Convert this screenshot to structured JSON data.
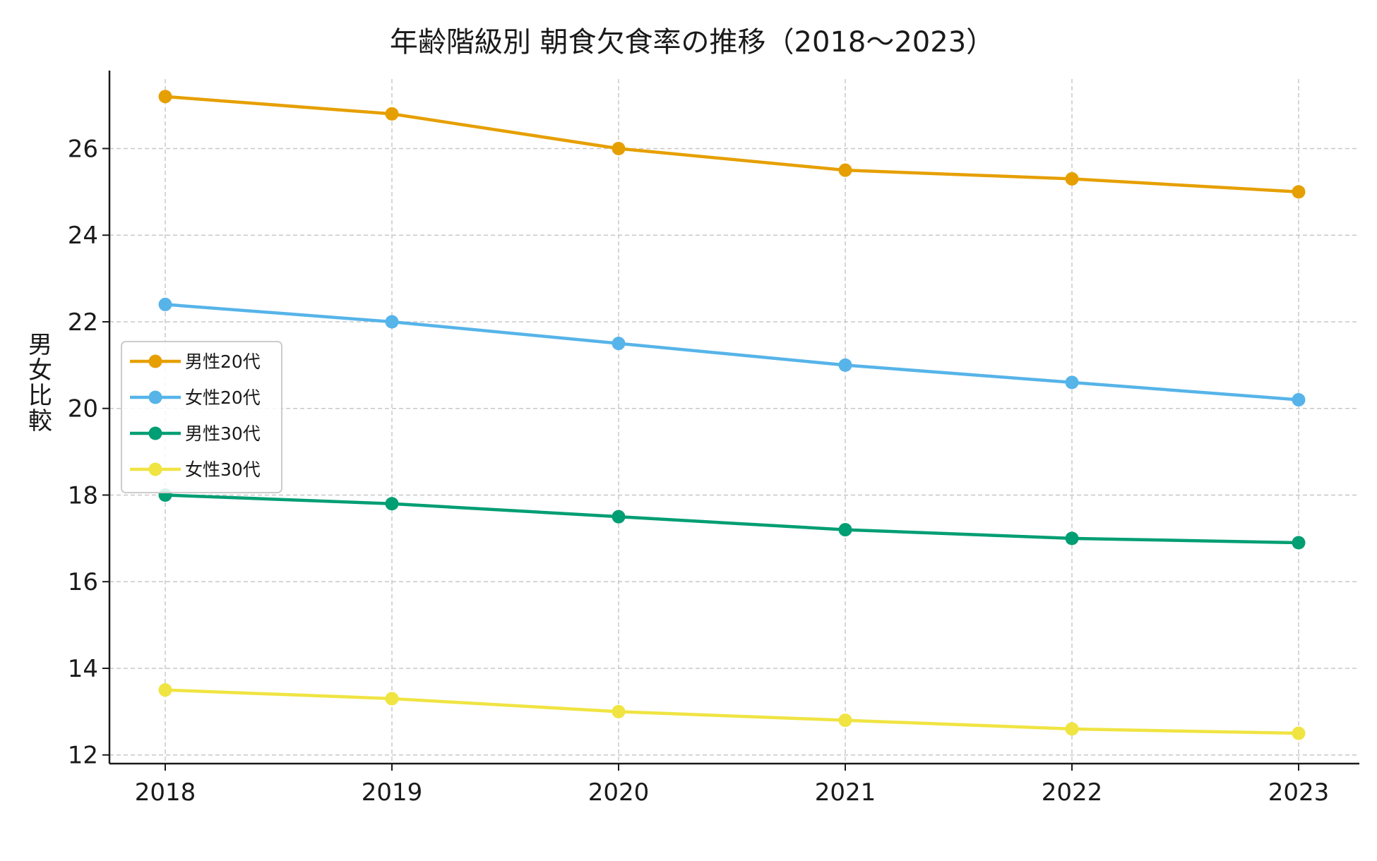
{
  "chart_data": {
    "type": "line",
    "title": "年齢階級別 朝食欠食率の推移（2018〜2023）",
    "xlabel": "",
    "ylabel": "男女比較",
    "categories": [
      "2018",
      "2019",
      "2020",
      "2021",
      "2022",
      "2023"
    ],
    "ylim": [
      11.8,
      27.8
    ],
    "yticks": [
      12,
      14,
      16,
      18,
      20,
      22,
      24,
      26
    ],
    "grid": true,
    "legend_position": "center-left",
    "series": [
      {
        "name": "男性20代",
        "color": "#E69F00",
        "values": [
          27.2,
          26.8,
          26.0,
          25.5,
          25.3,
          25.0
        ]
      },
      {
        "name": "女性20代",
        "color": "#56B4E9",
        "values": [
          22.4,
          22.0,
          21.5,
          21.0,
          20.6,
          20.2
        ]
      },
      {
        "name": "男性30代",
        "color": "#009E73",
        "values": [
          18.0,
          17.8,
          17.5,
          17.2,
          17.0,
          16.9
        ]
      },
      {
        "name": "女性30代",
        "color": "#F0E442",
        "values": [
          13.5,
          13.3,
          13.0,
          12.8,
          12.6,
          12.5
        ]
      }
    ]
  }
}
